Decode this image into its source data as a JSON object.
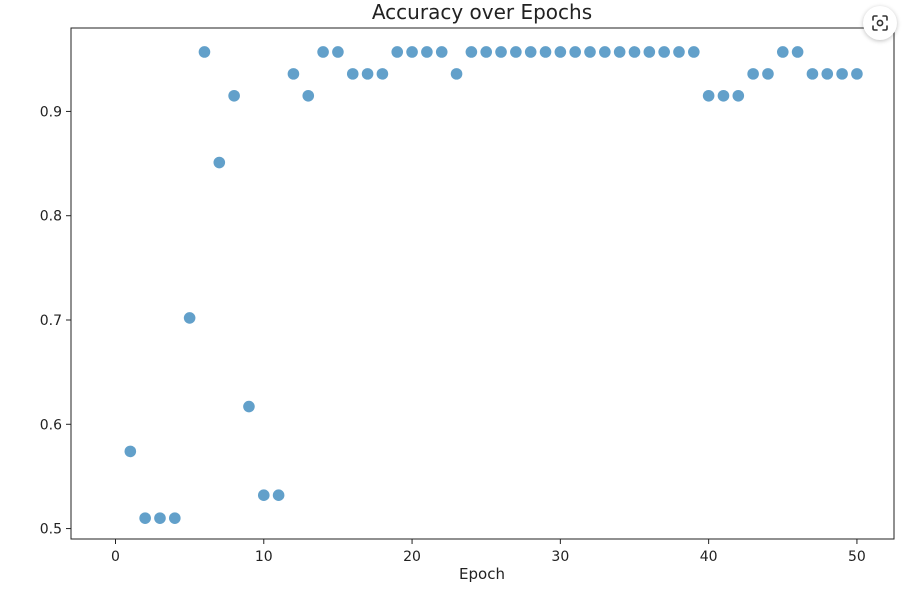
{
  "chart_data": {
    "type": "scatter",
    "title": "Accuracy over Epochs",
    "xlabel": "Epoch",
    "ylabel": "",
    "xlim": [
      -3,
      52.5
    ],
    "ylim": [
      0.49,
      0.98
    ],
    "xticks": [
      0,
      10,
      20,
      30,
      40,
      50
    ],
    "yticks": [
      0.5,
      0.6,
      0.7,
      0.8,
      0.9
    ],
    "xtick_labels": [
      "0",
      "10",
      "20",
      "30",
      "40",
      "50"
    ],
    "ytick_labels": [
      "0.5",
      "0.6",
      "0.7",
      "0.8",
      "0.9"
    ],
    "grid": false,
    "series": [
      {
        "color": "#1f77b4",
        "x": [
          1,
          2,
          3,
          4,
          5,
          6,
          7,
          8,
          9,
          10,
          11,
          12,
          13,
          14,
          15,
          16,
          17,
          18,
          19,
          20,
          21,
          22,
          23,
          24,
          25,
          26,
          27,
          28,
          29,
          30,
          31,
          32,
          33,
          34,
          35,
          36,
          37,
          38,
          39,
          40,
          41,
          42,
          43,
          44,
          45,
          46,
          47,
          48,
          49,
          50
        ],
        "y": [
          0.574,
          0.51,
          0.51,
          0.51,
          0.702,
          0.957,
          0.851,
          0.915,
          0.617,
          0.532,
          0.532,
          0.936,
          0.915,
          0.957,
          0.957,
          0.936,
          0.936,
          0.936,
          0.957,
          0.957,
          0.957,
          0.957,
          0.936,
          0.957,
          0.957,
          0.957,
          0.957,
          0.957,
          0.957,
          0.957,
          0.957,
          0.957,
          0.957,
          0.957,
          0.957,
          0.957,
          0.957,
          0.957,
          0.957,
          0.915,
          0.915,
          0.915,
          0.936,
          0.936,
          0.957,
          0.957,
          0.936,
          0.936,
          0.936,
          0.936
        ]
      }
    ]
  },
  "ui": {
    "lens_icon": "visual-search-icon"
  }
}
